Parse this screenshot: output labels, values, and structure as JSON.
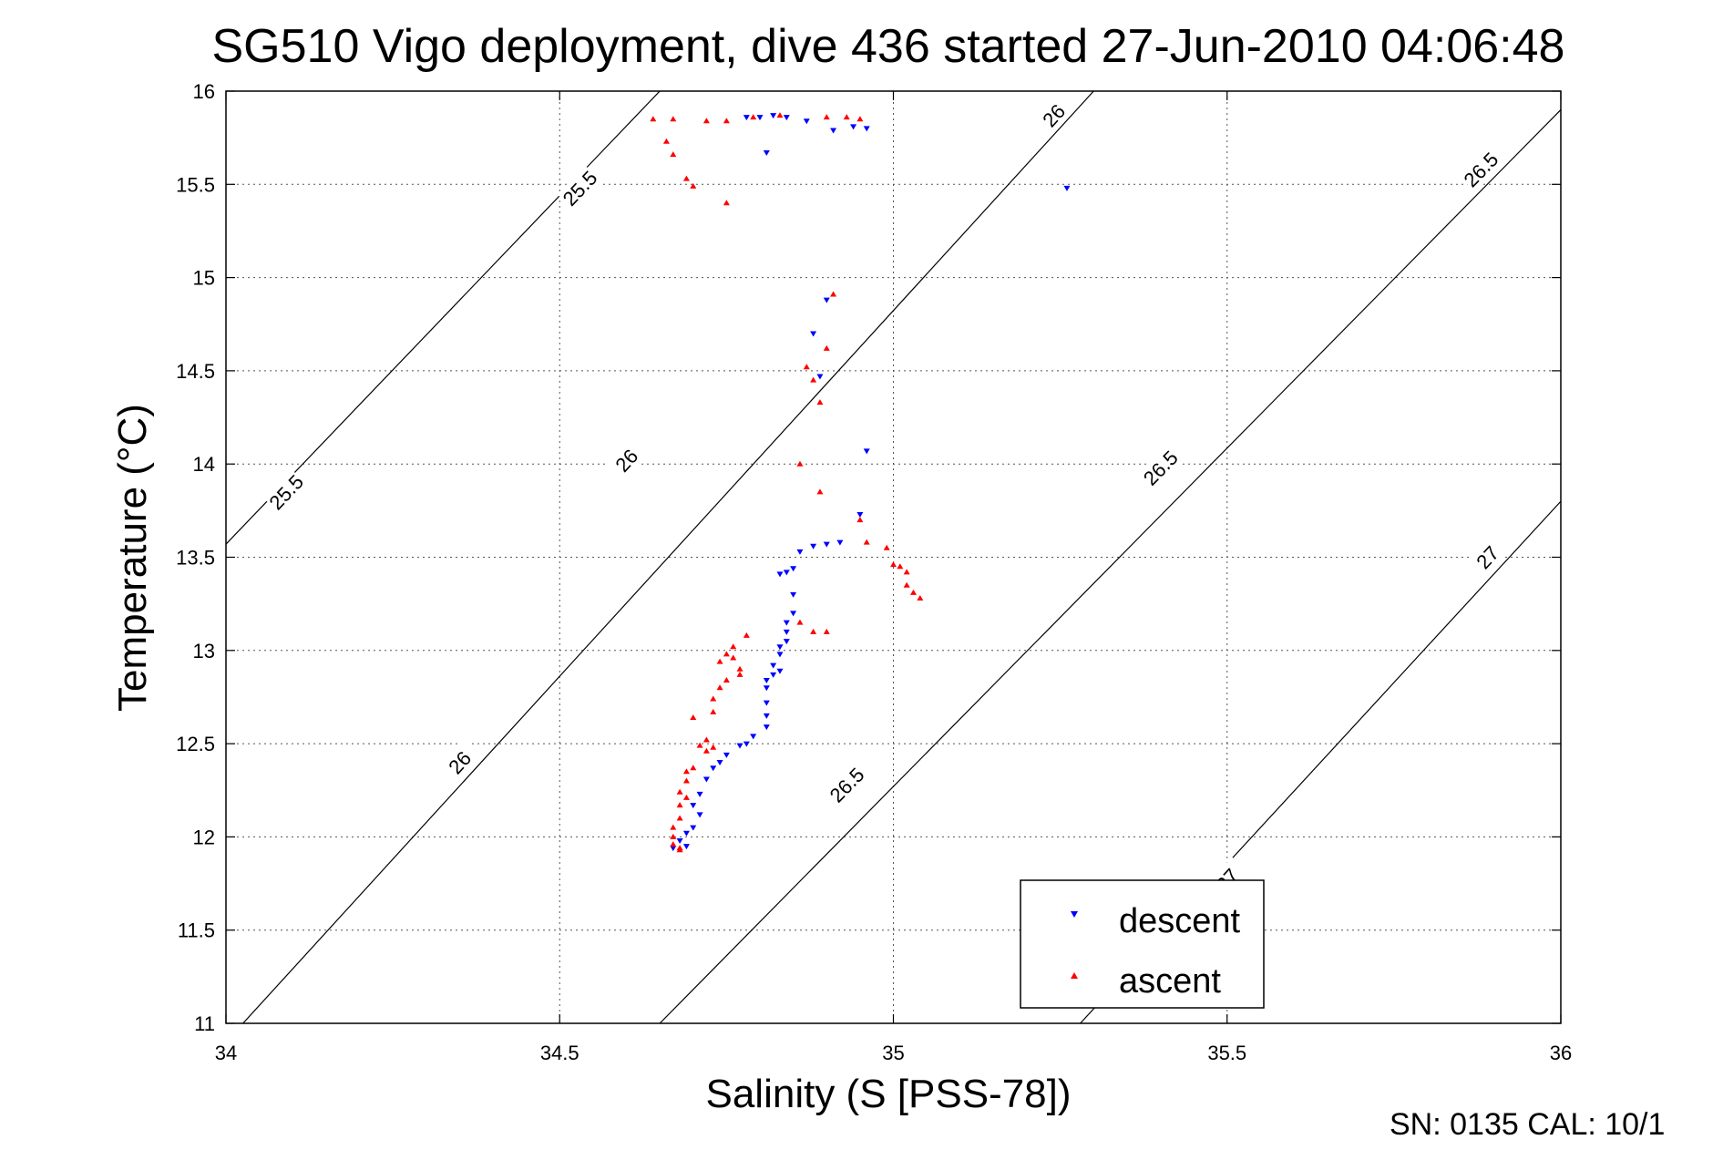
{
  "title": "SG510 Vigo deployment, dive 436 started 27-Jun-2010 04:06:48",
  "footer": "SN: 0135  CAL: 10/1",
  "chart_data": {
    "type": "scatter",
    "xlabel": "Salinity (S [PSS-78])",
    "ylabel": "Temperature (°C)",
    "xlim": [
      34,
      36
    ],
    "ylim": [
      11,
      16
    ],
    "xticks": [
      34,
      34.5,
      35,
      35.5,
      36
    ],
    "xtick_labels": [
      "34",
      "34.5",
      "35",
      "35.5",
      "36"
    ],
    "yticks": [
      11,
      11.5,
      12,
      12.5,
      13,
      13.5,
      14,
      14.5,
      15,
      15.5,
      16
    ],
    "ytick_labels": [
      "11",
      "11.5",
      "12",
      "12.5",
      "13",
      "13.5",
      "14",
      "14.5",
      "15",
      "15.5",
      "16"
    ],
    "grid": true,
    "legend_position": "bottom-right",
    "density_contours": [
      {
        "level": "25.5",
        "points": [
          [
            34.0,
            13.57
          ],
          [
            34.65,
            16.0
          ]
        ],
        "labels": [
          [
            34.09,
            13.85
          ],
          [
            34.53,
            15.48
          ]
        ]
      },
      {
        "level": "26",
        "points": [
          [
            34.0,
            10.9
          ],
          [
            35.3,
            16.0
          ]
        ],
        "labels": [
          [
            34.35,
            12.4
          ],
          [
            34.6,
            14.02
          ],
          [
            35.24,
            15.87
          ]
        ]
      },
      {
        "level": "26.5",
        "points": [
          [
            34.65,
            11.0
          ],
          [
            36.0,
            15.9
          ]
        ],
        "labels": [
          [
            34.93,
            12.28
          ],
          [
            35.4,
            13.98
          ],
          [
            35.88,
            15.58
          ]
        ]
      },
      {
        "level": "27",
        "points": [
          [
            35.28,
            11.0
          ],
          [
            36.0,
            13.8
          ]
        ],
        "labels": [
          [
            35.5,
            11.77
          ],
          [
            35.89,
            13.5
          ]
        ]
      }
    ],
    "series": [
      {
        "name": "descent",
        "color": "#0000ff",
        "marker": "triangle-down",
        "points": [
          [
            34.78,
            15.86
          ],
          [
            34.8,
            15.86
          ],
          [
            34.82,
            15.87
          ],
          [
            34.84,
            15.86
          ],
          [
            34.87,
            15.84
          ],
          [
            34.91,
            15.79
          ],
          [
            34.94,
            15.81
          ],
          [
            34.96,
            15.8
          ],
          [
            34.81,
            15.67
          ],
          [
            35.26,
            15.48
          ],
          [
            34.9,
            14.88
          ],
          [
            34.88,
            14.7
          ],
          [
            34.89,
            14.47
          ],
          [
            34.96,
            14.07
          ],
          [
            34.95,
            13.73
          ],
          [
            34.92,
            13.58
          ],
          [
            34.9,
            13.57
          ],
          [
            34.88,
            13.56
          ],
          [
            34.86,
            13.53
          ],
          [
            34.85,
            13.44
          ],
          [
            34.84,
            13.42
          ],
          [
            34.83,
            13.41
          ],
          [
            34.85,
            13.3
          ],
          [
            34.85,
            13.2
          ],
          [
            34.84,
            13.15
          ],
          [
            34.84,
            13.1
          ],
          [
            34.84,
            13.05
          ],
          [
            34.83,
            13.02
          ],
          [
            34.83,
            12.98
          ],
          [
            34.82,
            12.92
          ],
          [
            34.83,
            12.89
          ],
          [
            34.82,
            12.87
          ],
          [
            34.81,
            12.84
          ],
          [
            34.81,
            12.8
          ],
          [
            34.81,
            12.72
          ],
          [
            34.81,
            12.65
          ],
          [
            34.81,
            12.59
          ],
          [
            34.79,
            12.54
          ],
          [
            34.78,
            12.5
          ],
          [
            34.77,
            12.49
          ],
          [
            34.75,
            12.44
          ],
          [
            34.74,
            12.4
          ],
          [
            34.73,
            12.37
          ],
          [
            34.72,
            12.31
          ],
          [
            34.71,
            12.23
          ],
          [
            34.7,
            12.17
          ],
          [
            34.71,
            12.12
          ],
          [
            34.7,
            12.05
          ],
          [
            34.69,
            12.02
          ],
          [
            34.68,
            11.98
          ],
          [
            34.67,
            11.94
          ],
          [
            34.69,
            11.95
          ]
        ]
      },
      {
        "name": "ascent",
        "color": "#ff0000",
        "marker": "triangle-up",
        "points": [
          [
            34.64,
            15.85
          ],
          [
            34.67,
            15.85
          ],
          [
            34.72,
            15.84
          ],
          [
            34.75,
            15.84
          ],
          [
            34.79,
            15.86
          ],
          [
            34.83,
            15.87
          ],
          [
            34.9,
            15.86
          ],
          [
            34.93,
            15.86
          ],
          [
            34.95,
            15.85
          ],
          [
            34.66,
            15.73
          ],
          [
            34.67,
            15.66
          ],
          [
            34.69,
            15.53
          ],
          [
            34.7,
            15.49
          ],
          [
            34.75,
            15.4
          ],
          [
            34.91,
            14.91
          ],
          [
            34.9,
            14.62
          ],
          [
            34.87,
            14.52
          ],
          [
            34.88,
            14.45
          ],
          [
            34.89,
            14.33
          ],
          [
            34.86,
            14.0
          ],
          [
            34.89,
            13.85
          ],
          [
            34.95,
            13.7
          ],
          [
            34.96,
            13.58
          ],
          [
            34.99,
            13.55
          ],
          [
            35.0,
            13.46
          ],
          [
            35.01,
            13.45
          ],
          [
            35.02,
            13.42
          ],
          [
            35.02,
            13.35
          ],
          [
            35.03,
            13.31
          ],
          [
            35.04,
            13.28
          ],
          [
            34.88,
            13.1
          ],
          [
            34.9,
            13.1
          ],
          [
            34.86,
            13.15
          ],
          [
            34.78,
            13.08
          ],
          [
            34.76,
            13.02
          ],
          [
            34.75,
            12.98
          ],
          [
            34.76,
            12.96
          ],
          [
            34.74,
            12.94
          ],
          [
            34.77,
            12.9
          ],
          [
            34.77,
            12.87
          ],
          [
            34.75,
            12.84
          ],
          [
            34.74,
            12.8
          ],
          [
            34.73,
            12.74
          ],
          [
            34.73,
            12.67
          ],
          [
            34.7,
            12.64
          ],
          [
            34.72,
            12.52
          ],
          [
            34.73,
            12.48
          ],
          [
            34.71,
            12.49
          ],
          [
            34.72,
            12.46
          ],
          [
            34.7,
            12.37
          ],
          [
            34.69,
            12.35
          ],
          [
            34.69,
            12.3
          ],
          [
            34.68,
            12.24
          ],
          [
            34.69,
            12.21
          ],
          [
            34.68,
            12.17
          ],
          [
            34.68,
            12.1
          ],
          [
            34.67,
            12.05
          ],
          [
            34.67,
            12.0
          ],
          [
            34.67,
            11.96
          ],
          [
            34.68,
            11.94
          ],
          [
            34.68,
            11.93
          ]
        ]
      }
    ]
  }
}
